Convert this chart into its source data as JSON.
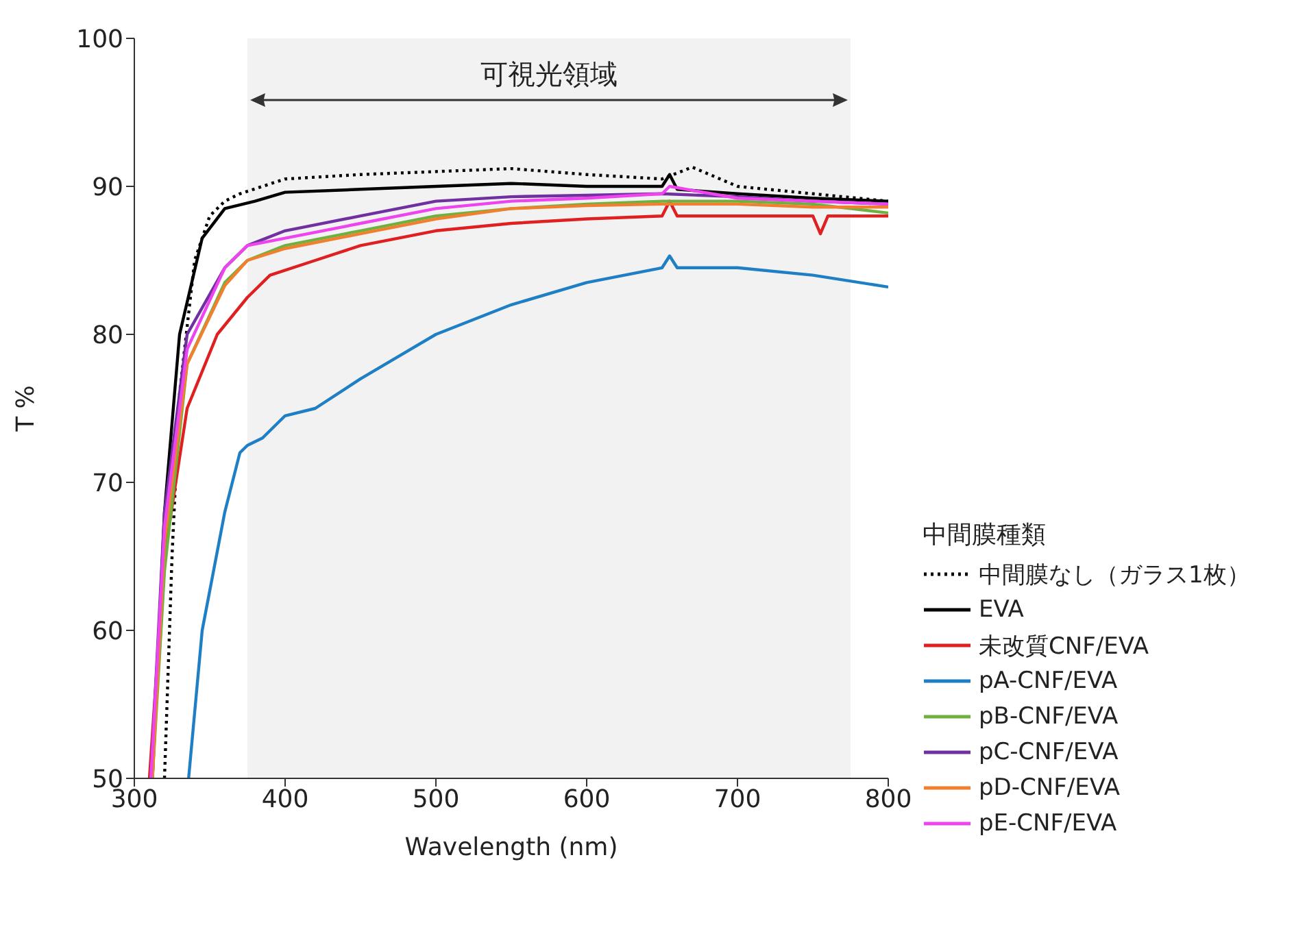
{
  "chart_data": {
    "type": "line",
    "xlabel": "Wavelength (nm)",
    "ylabel": "T %",
    "legend_title": "中間膜種類",
    "legend": "right",
    "grid": false,
    "marker": "none",
    "xlim": [
      300,
      800
    ],
    "xticks": [
      300,
      400,
      500,
      600,
      700,
      800
    ],
    "ylim": [
      50,
      100
    ],
    "yticks": [
      50,
      60,
      70,
      80,
      90,
      100
    ],
    "bands": [
      {
        "axis": "x",
        "from": 375,
        "to": 775,
        "label": "可視光領域",
        "color": "#f2f2f2"
      }
    ],
    "series": [
      {
        "name": "中間膜なし（ガラス1枚）",
        "color": "#000000",
        "line_style": "dotted",
        "x": [
          320,
          325,
          330,
          340,
          350,
          360,
          370,
          400,
          450,
          500,
          550,
          600,
          650,
          670,
          700,
          750,
          800
        ],
        "values": [
          50,
          65,
          76,
          85,
          88,
          89,
          89.5,
          90.5,
          90.8,
          91,
          91.2,
          90.8,
          90.5,
          91.3,
          90,
          89.5,
          89
        ]
      },
      {
        "name": "EVA",
        "color": "#000000",
        "line_style": "solid",
        "x": [
          312,
          320,
          330,
          345,
          360,
          380,
          400,
          450,
          500,
          550,
          600,
          650,
          655,
          660,
          700,
          750,
          800
        ],
        "values": [
          50,
          68,
          80,
          86.5,
          88.5,
          89,
          89.6,
          89.8,
          90,
          90.2,
          90,
          90,
          90.8,
          89.8,
          89.5,
          89.2,
          89
        ]
      },
      {
        "name": "未改質CNF/EVA",
        "color": "#e02020",
        "line_style": "solid",
        "x": [
          310,
          320,
          335,
          355,
          375,
          390,
          420,
          450,
          500,
          550,
          600,
          650,
          655,
          660,
          700,
          750,
          755,
          760,
          800
        ],
        "values": [
          50,
          65,
          75,
          80,
          82.5,
          84,
          85,
          86,
          87,
          87.5,
          87.8,
          88,
          89,
          88,
          88,
          88,
          86.8,
          88,
          88
        ]
      },
      {
        "name": "pA-CNF/EVA",
        "color": "#1f7fc4",
        "line_style": "solid",
        "x": [
          336,
          345,
          360,
          370,
          375,
          385,
          400,
          420,
          450,
          500,
          550,
          600,
          650,
          655,
          660,
          700,
          750,
          800
        ],
        "values": [
          50,
          60,
          68,
          72,
          72.5,
          73,
          74.5,
          75,
          77,
          80,
          82,
          83.5,
          84.5,
          85.3,
          84.5,
          84.5,
          84,
          83.2
        ]
      },
      {
        "name": "pB-CNF/EVA",
        "color": "#70b040",
        "line_style": "solid",
        "x": [
          312,
          320,
          335,
          360,
          375,
          400,
          450,
          500,
          550,
          600,
          650,
          700,
          750,
          800
        ],
        "values": [
          50,
          64,
          78,
          83.5,
          85,
          86,
          87,
          88,
          88.5,
          88.8,
          89,
          89,
          88.8,
          88.2
        ]
      },
      {
        "name": "pC-CNF/EVA",
        "color": "#7030a0",
        "line_style": "solid",
        "x": [
          311,
          320,
          335,
          360,
          375,
          400,
          450,
          500,
          550,
          600,
          650,
          700,
          750,
          800
        ],
        "values": [
          50,
          68,
          80,
          84.5,
          86,
          87,
          88,
          89,
          89.3,
          89.4,
          89.5,
          89.3,
          89,
          88.8
        ]
      },
      {
        "name": "pD-CNF/EVA",
        "color": "#f08030",
        "line_style": "solid",
        "x": [
          312,
          320,
          335,
          360,
          375,
          400,
          450,
          500,
          550,
          600,
          650,
          700,
          750,
          800
        ],
        "values": [
          50,
          66,
          78,
          83.3,
          85,
          85.8,
          86.8,
          87.8,
          88.5,
          88.7,
          88.8,
          88.8,
          88.6,
          88.6
        ]
      },
      {
        "name": "pE-CNF/EVA",
        "color": "#ee44ee",
        "line_style": "solid",
        "x": [
          311,
          320,
          335,
          360,
          375,
          400,
          450,
          500,
          550,
          600,
          650,
          655,
          700,
          750,
          800
        ],
        "values": [
          50,
          67,
          79,
          84.5,
          86,
          86.5,
          87.5,
          88.5,
          89,
          89.2,
          89.5,
          90,
          89.2,
          89,
          88.8
        ]
      }
    ]
  }
}
